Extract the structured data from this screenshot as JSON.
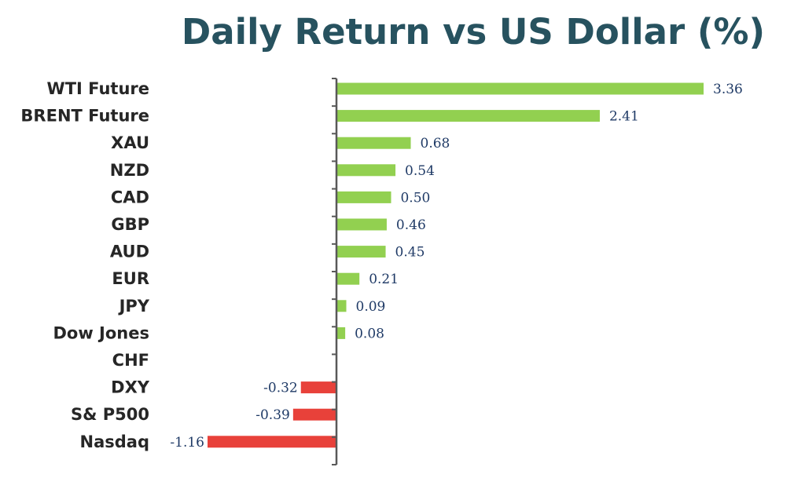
{
  "chart_data": {
    "type": "bar",
    "orientation": "horizontal",
    "title": "Daily Return vs US Dollar (%)",
    "categories": [
      "WTI Future",
      "BRENT Future",
      "XAU",
      "NZD",
      "CAD",
      "GBP",
      "AUD",
      "EUR",
      "JPY",
      "Dow Jones",
      "CHF",
      "DXY",
      "S& P500",
      "Nasdaq"
    ],
    "values": [
      3.36,
      2.41,
      0.68,
      0.54,
      0.5,
      0.46,
      0.45,
      0.21,
      0.09,
      0.08,
      0.0,
      -0.32,
      -0.39,
      -1.16
    ],
    "data_labels": [
      "3.36",
      "2.41",
      "0.68",
      "0.54",
      "0.50",
      "0.46",
      "0.45",
      "0.21",
      "0.09",
      "0.08",
      "",
      "-0.32",
      "-0.39",
      "-1.16"
    ],
    "xlim": [
      -1.16,
      3.36
    ],
    "grid": false,
    "legend": "none",
    "colors": {
      "positive": "#92d050",
      "negative": "#e8413a",
      "title": "#27525f",
      "category_text": "#262626",
      "value_text": "#1f3a66",
      "axis": "#595959"
    }
  }
}
